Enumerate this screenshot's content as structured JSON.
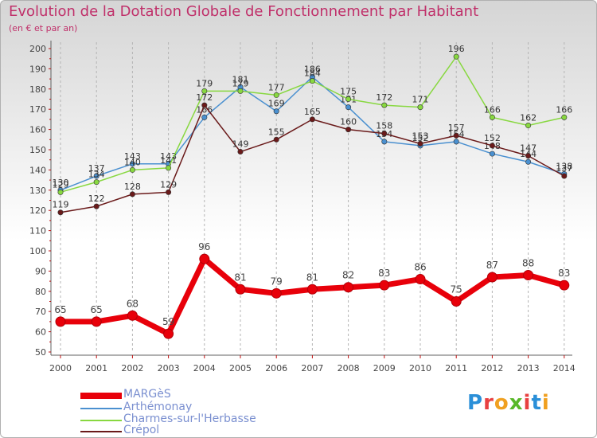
{
  "title": "Evolution de la Dotation Globale de Fonctionnement par Habitant",
  "subtitle": "(en € et par an)",
  "brand": {
    "text": "Proxiti"
  },
  "chart_data": {
    "type": "line",
    "categories": [
      "2000",
      "2001",
      "2002",
      "2003",
      "2004",
      "2005",
      "2006",
      "2007",
      "2008",
      "2009",
      "2010",
      "2011",
      "2012",
      "2013",
      "2014"
    ],
    "ylim": [
      50,
      200
    ],
    "yticks": [
      50,
      60,
      70,
      80,
      90,
      100,
      110,
      120,
      130,
      140,
      150,
      160,
      170,
      180,
      190,
      200
    ],
    "grid": "vertical dashed",
    "series": [
      {
        "name": "MARGèS",
        "color": "#e8000a",
        "values": [
          65,
          65,
          68,
          59,
          96,
          81,
          79,
          81,
          82,
          83,
          86,
          75,
          87,
          88,
          83
        ]
      },
      {
        "name": "Arthémonay",
        "color": "#4a90d0",
        "values": [
          130,
          137,
          143,
          143,
          166,
          181,
          169,
          186,
          171,
          154,
          152,
          154,
          148,
          144,
          138
        ]
      },
      {
        "name": "Charmes-sur-l'Herbasse",
        "color": "#88d840",
        "values": [
          129,
          134,
          140,
          141,
          179,
          179,
          177,
          184,
          175,
          172,
          171,
          196,
          166,
          162,
          166
        ]
      },
      {
        "name": "Crépol",
        "color": "#6a1a1a",
        "values": [
          119,
          122,
          128,
          129,
          172,
          149,
          155,
          165,
          160,
          158,
          153,
          157,
          152,
          147,
          137
        ]
      }
    ]
  }
}
